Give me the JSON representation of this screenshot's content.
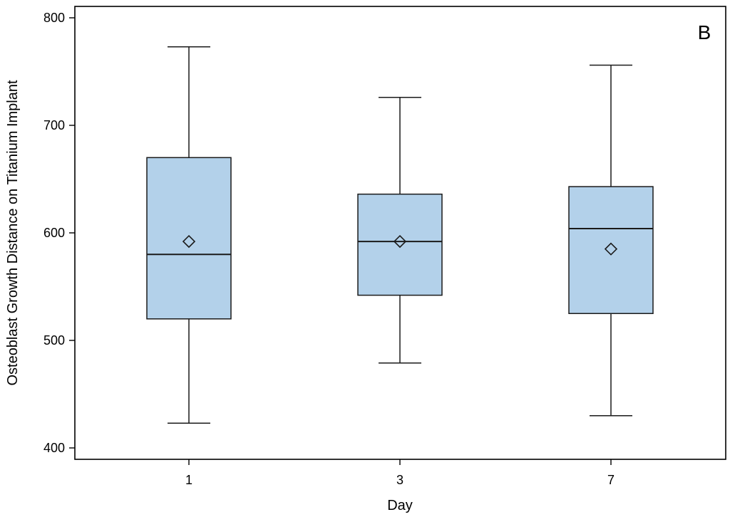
{
  "chart_data": {
    "type": "box",
    "panel_label": "B",
    "xlabel": "Day",
    "ylabel": "Osteoblast Growth Distance on Titanium Implant",
    "ylim": [
      390,
      803
    ],
    "yticks": [
      400,
      500,
      600,
      700,
      800
    ],
    "categories": [
      "1",
      "3",
      "7"
    ],
    "boxes": [
      {
        "category": "1",
        "min": 423,
        "q1": 520,
        "median": 580,
        "q3": 670,
        "max": 773,
        "mean": 592
      },
      {
        "category": "3",
        "min": 479,
        "q1": 542,
        "median": 592,
        "q3": 636,
        "max": 726,
        "mean": 592
      },
      {
        "category": "7",
        "min": 430,
        "q1": 525,
        "median": 604,
        "q3": 643,
        "max": 756,
        "mean": 585
      }
    ],
    "grid": false,
    "colors": {
      "box_fill": "#b3d1ea",
      "stroke": "#1a1a1a"
    }
  }
}
